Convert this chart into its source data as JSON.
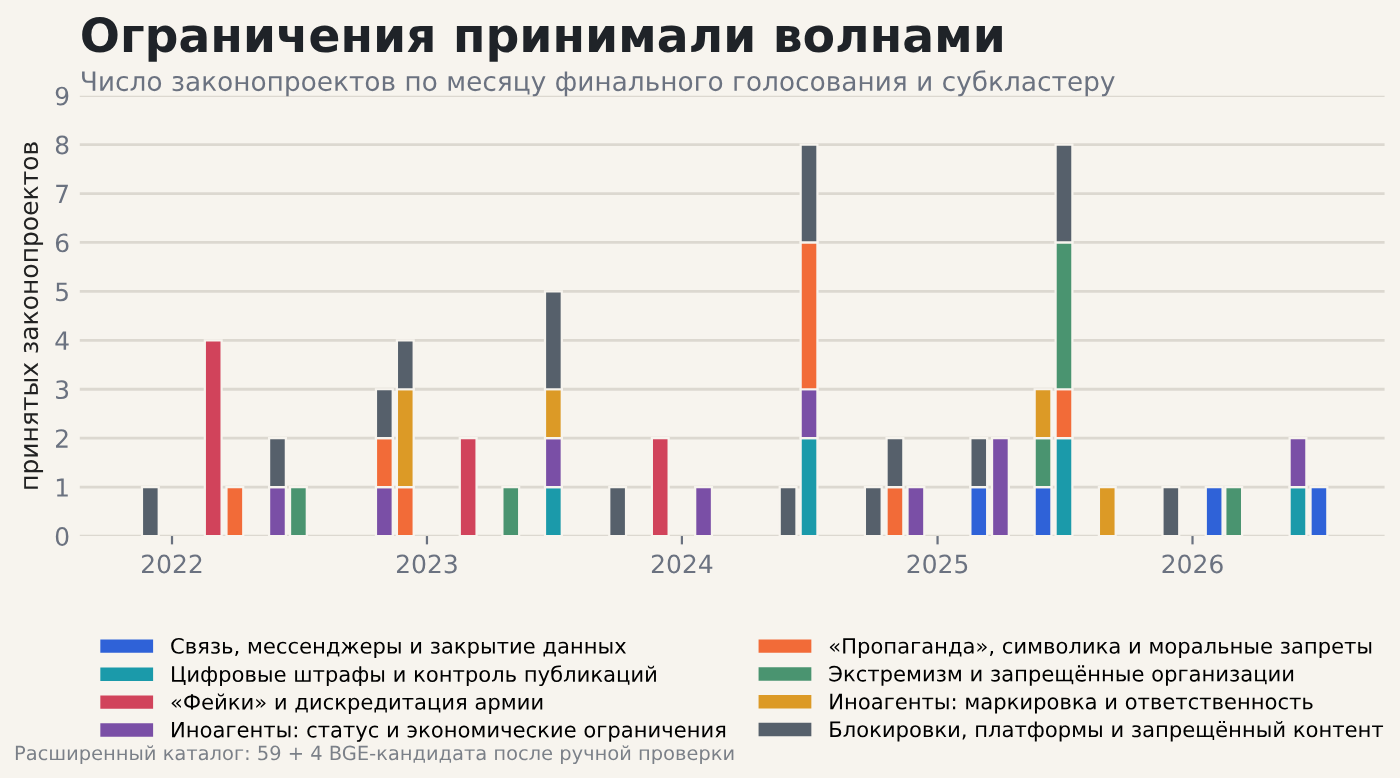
{
  "chart_data": {
    "type": "bar",
    "stacked": true,
    "title": "Ограничения принимали волнами",
    "subtitle": "Число законопроектов по месяцу финального голосования и субкластеру",
    "ylabel": "принятых законопроектов",
    "annotations": [
      "Расширенный каталог: 59 + 4 BGE-кандидата после ручной проверки"
    ],
    "x": [
      "2021-12",
      "2022-03",
      "2022-04",
      "2022-06",
      "2022-07",
      "2022-11",
      "2022-12",
      "2023-03",
      "2023-05",
      "2023-07",
      "2023-10",
      "2023-12",
      "2024-02",
      "2024-06",
      "2024-07",
      "2024-10",
      "2024-11",
      "2024-12",
      "2025-03",
      "2025-04",
      "2025-06",
      "2025-07",
      "2025-09",
      "2025-12",
      "2026-02",
      "2026-03",
      "2026-06",
      "2026-07"
    ],
    "series": [
      {
        "name": "Связь, мессенджеры и закрытие данных",
        "color": "#2f62d8",
        "values": [
          null,
          null,
          null,
          null,
          null,
          null,
          null,
          null,
          null,
          null,
          null,
          null,
          null,
          null,
          null,
          null,
          null,
          null,
          1,
          null,
          1,
          null,
          null,
          null,
          1,
          null,
          null,
          1
        ]
      },
      {
        "name": "Цифровые штрафы и контроль публикаций",
        "color": "#1b9aaa",
        "values": [
          null,
          null,
          null,
          null,
          null,
          null,
          null,
          null,
          null,
          1,
          null,
          null,
          null,
          null,
          2,
          null,
          null,
          null,
          null,
          null,
          null,
          2,
          null,
          null,
          null,
          null,
          1,
          null
        ]
      },
      {
        "name": "«Фейки» и дискредитация армии",
        "color": "#d1435b",
        "values": [
          null,
          4,
          null,
          null,
          null,
          null,
          null,
          2,
          null,
          null,
          null,
          2,
          null,
          null,
          null,
          null,
          null,
          null,
          null,
          null,
          null,
          null,
          null,
          null,
          null,
          null,
          null,
          null
        ]
      },
      {
        "name": "Иноагенты: статус и экономические ограничения",
        "color": "#7a4fa6",
        "values": [
          null,
          null,
          null,
          1,
          null,
          1,
          null,
          null,
          null,
          1,
          null,
          null,
          1,
          null,
          1,
          null,
          null,
          1,
          null,
          2,
          null,
          null,
          null,
          null,
          null,
          null,
          1,
          null
        ]
      },
      {
        "name": "«Пропаганда», символика и моральные запреты",
        "color": "#f26b38",
        "values": [
          null,
          null,
          1,
          null,
          null,
          1,
          1,
          null,
          null,
          null,
          null,
          null,
          null,
          null,
          3,
          null,
          1,
          null,
          null,
          null,
          null,
          1,
          null,
          null,
          null,
          null,
          null,
          null
        ]
      },
      {
        "name": "Экстремизм и запрещённые организации",
        "color": "#4a9470",
        "values": [
          null,
          null,
          null,
          null,
          1,
          null,
          null,
          null,
          1,
          null,
          null,
          null,
          null,
          null,
          null,
          null,
          null,
          null,
          null,
          null,
          1,
          3,
          null,
          null,
          null,
          1,
          null,
          null
        ]
      },
      {
        "name": "Иноагенты: маркировка и ответственность",
        "color": "#dc9a26",
        "values": [
          null,
          null,
          null,
          null,
          null,
          null,
          2,
          null,
          null,
          1,
          null,
          null,
          null,
          null,
          null,
          null,
          null,
          null,
          null,
          null,
          1,
          null,
          1,
          null,
          null,
          null,
          null,
          null
        ]
      },
      {
        "name": "Блокировки, платформы и запрещённый контент",
        "color": "#56606b",
        "values": [
          1,
          null,
          null,
          1,
          null,
          1,
          1,
          null,
          null,
          2,
          1,
          null,
          null,
          1,
          2,
          1,
          1,
          null,
          1,
          null,
          null,
          2,
          null,
          1,
          null,
          null,
          null,
          null
        ]
      }
    ],
    "xlim": [
      "2021-08-22",
      "2026-10-03"
    ],
    "xticks": [
      "2022",
      "2023",
      "2024",
      "2025",
      "2026"
    ],
    "ylim": [
      0,
      9
    ],
    "yticks": [
      0,
      1,
      2,
      3,
      4,
      5,
      6,
      7,
      8,
      9
    ],
    "grid": "y",
    "legend": "bottom"
  }
}
